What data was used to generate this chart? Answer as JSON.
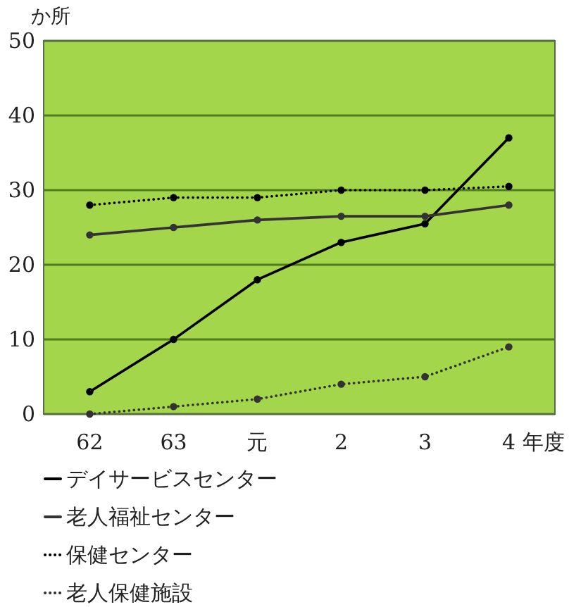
{
  "chart_data": {
    "type": "line",
    "ylabel": "か所",
    "xlabel": "年度",
    "categories": [
      "62",
      "63",
      "元",
      "2",
      "3",
      "4"
    ],
    "ylim": [
      0,
      50
    ],
    "yticks": [
      0,
      10,
      20,
      30,
      40,
      50
    ],
    "grid": "y",
    "legend": "bottom left",
    "marker": "circle",
    "series": [
      {
        "name": "デイサービスセンター",
        "color": "#000000",
        "line_style": "solid",
        "values": [
          3,
          10,
          18,
          23,
          25.5,
          37
        ]
      },
      {
        "name": "老人福祉センター",
        "color": "#333333",
        "line_style": "solid",
        "values": [
          24,
          25,
          26,
          26.5,
          26.5,
          28
        ]
      },
      {
        "name": "保健センター",
        "color": "#000000",
        "line_style": "dotted",
        "values": [
          28,
          29,
          29,
          30,
          30,
          30.5
        ]
      },
      {
        "name": "老人保健施設",
        "color": "#333333",
        "line_style": "dotted",
        "values": [
          0,
          1,
          2,
          4,
          5,
          9
        ]
      }
    ]
  }
}
